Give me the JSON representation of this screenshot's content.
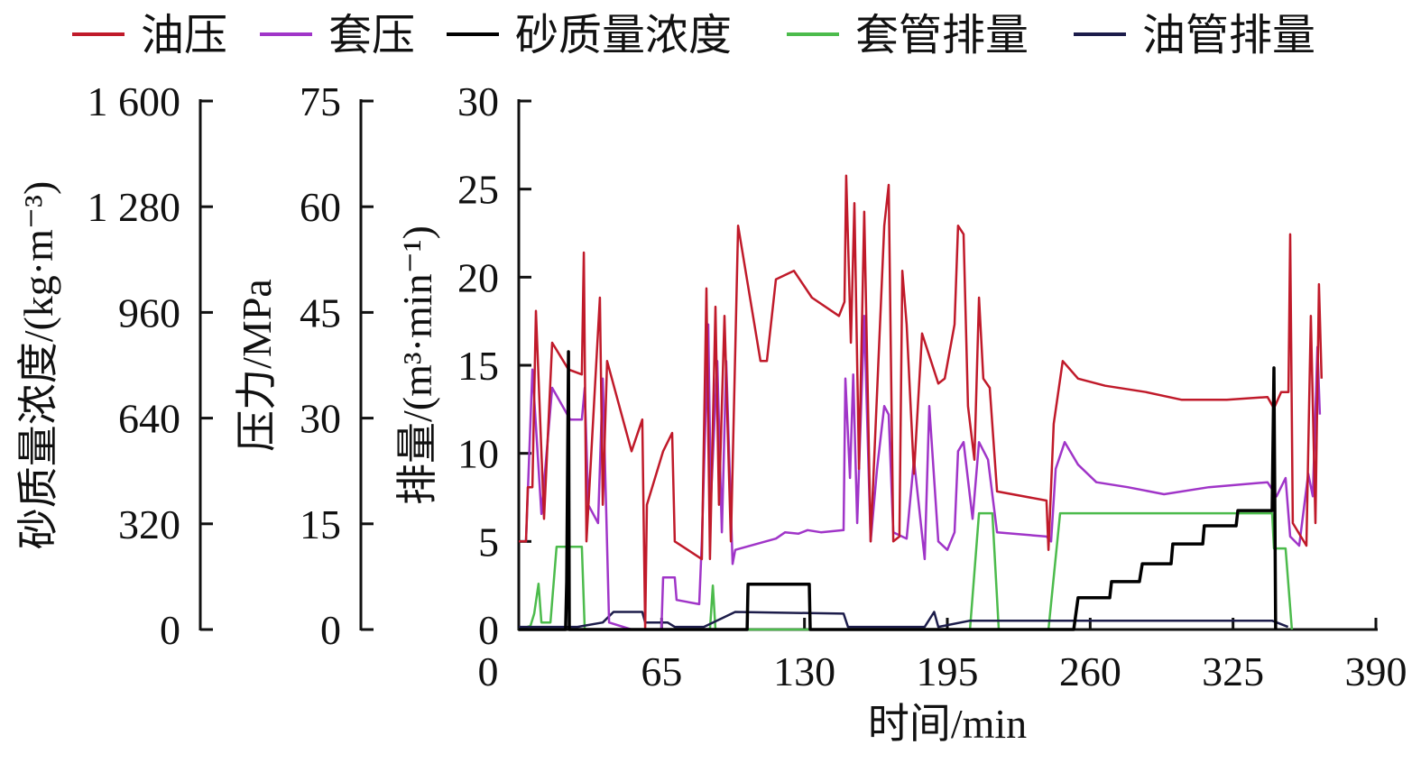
{
  "chart_data": {
    "type": "line",
    "xlabel": "时间/min",
    "xlim": [
      0,
      390
    ],
    "x_ticks": [
      "0",
      "65",
      "130",
      "195",
      "260",
      "325",
      "390"
    ],
    "y_axes": [
      {
        "id": "sand",
        "label": "砂质量浓度/(kg·m⁻³)",
        "range": [
          0,
          1600
        ],
        "ticks": [
          "0",
          "320",
          "640",
          "960",
          "1 280",
          "1 600"
        ]
      },
      {
        "id": "pressure",
        "label": "压力/MPa",
        "range": [
          0,
          75
        ],
        "ticks": [
          "0",
          "15",
          "30",
          "45",
          "60",
          "75"
        ]
      },
      {
        "id": "rate",
        "label": "排量/(m³·min⁻¹)",
        "range": [
          0,
          30
        ],
        "ticks": [
          "0",
          "5",
          "10",
          "15",
          "20",
          "25",
          "30"
        ]
      }
    ],
    "legend_position": "top",
    "series": [
      {
        "name": "油压",
        "axis": "pressure",
        "color": "#c01a2a",
        "points": [
          [
            0,
            12.5
          ],
          [
            3.3,
            12.5
          ],
          [
            4.1,
            20.2
          ],
          [
            6.2,
            20.2
          ],
          [
            7.8,
            45.2
          ],
          [
            11.5,
            15.7
          ],
          [
            15.2,
            40.7
          ],
          [
            22.6,
            36.9
          ],
          [
            28.7,
            36.2
          ],
          [
            29.6,
            53.5
          ],
          [
            30.8,
            12.5
          ],
          [
            36.9,
            47.1
          ],
          [
            38.2,
            17.7
          ],
          [
            40.2,
            38.1
          ],
          [
            51.3,
            25.3
          ],
          [
            56.2,
            29.8
          ],
          [
            57.5,
            0
          ],
          [
            58.3,
            17.7
          ],
          [
            65.7,
            25.3
          ],
          [
            69.8,
            27.9
          ],
          [
            71.0,
            12.5
          ],
          [
            83.3,
            10.0
          ],
          [
            85.4,
            48.4
          ],
          [
            87.0,
            10.0
          ],
          [
            89.5,
            45.8
          ],
          [
            91.1,
            17.7
          ],
          [
            93.6,
            44.5
          ],
          [
            96.5,
            12.5
          ],
          [
            99.8,
            57.3
          ],
          [
            110.0,
            38.1
          ],
          [
            112.9,
            38.1
          ],
          [
            117.0,
            49.7
          ],
          [
            125.2,
            50.9
          ],
          [
            133.4,
            47.1
          ],
          [
            145.7,
            44.5
          ],
          [
            148.2,
            46.5
          ],
          [
            149.0,
            64.4
          ],
          [
            151.1,
            40.7
          ],
          [
            152.7,
            60.5
          ],
          [
            154.8,
            22.8
          ],
          [
            157.2,
            59.3
          ],
          [
            160.1,
            12.5
          ],
          [
            166.3,
            57.3
          ],
          [
            168.3,
            63.1
          ],
          [
            170.4,
            12.5
          ],
          [
            173.2,
            13.2
          ],
          [
            174.5,
            50.9
          ],
          [
            176.5,
            43.3
          ],
          [
            179.8,
            22.1
          ],
          [
            183.5,
            42.0
          ],
          [
            190.9,
            34.9
          ],
          [
            193.8,
            35.6
          ],
          [
            198.3,
            43.3
          ],
          [
            199.9,
            57.3
          ],
          [
            202.4,
            56.1
          ],
          [
            204.4,
            31.7
          ],
          [
            207.3,
            24.1
          ],
          [
            209.4,
            47.1
          ],
          [
            211.4,
            35.6
          ],
          [
            214.3,
            34.3
          ],
          [
            217.6,
            19.6
          ],
          [
            240.1,
            18.3
          ],
          [
            241.0,
            11.3
          ],
          [
            243.4,
            29.2
          ],
          [
            247.5,
            38.1
          ],
          [
            254.5,
            35.6
          ],
          [
            266.8,
            34.6
          ],
          [
            285.3,
            33.7
          ],
          [
            301.7,
            32.6
          ],
          [
            322.2,
            32.6
          ],
          [
            340.7,
            33.0
          ],
          [
            343.6,
            31.4
          ],
          [
            346.9,
            33.7
          ],
          [
            350.2,
            33.7
          ],
          [
            351.0,
            56.1
          ],
          [
            352.2,
            15.1
          ],
          [
            358.4,
            11.9
          ],
          [
            360.4,
            44.5
          ],
          [
            362.5,
            15.1
          ],
          [
            364.1,
            49.0
          ],
          [
            365.3,
            35.6
          ]
        ]
      },
      {
        "name": "套压",
        "axis": "pressure",
        "color": "#a035c8",
        "points": [
          [
            0,
            12.5
          ],
          [
            3.3,
            12.5
          ],
          [
            6.2,
            36.9
          ],
          [
            10.3,
            16.4
          ],
          [
            15.2,
            34.3
          ],
          [
            23.4,
            29.8
          ],
          [
            28.7,
            29.8
          ],
          [
            30.0,
            34.3
          ],
          [
            31.6,
            17.7
          ],
          [
            36.1,
            15.1
          ],
          [
            38.2,
            35.6
          ],
          [
            41.1,
            1.0
          ],
          [
            51.3,
            0
          ],
          [
            64.9,
            0
          ],
          [
            65.7,
            7.4
          ],
          [
            71.0,
            7.4
          ],
          [
            71.8,
            4.2
          ],
          [
            82.1,
            3.6
          ],
          [
            83.3,
            12.5
          ],
          [
            86.2,
            43.3
          ],
          [
            87.4,
            18.3
          ],
          [
            90.3,
            38.1
          ],
          [
            92.4,
            13.8
          ],
          [
            94.4,
            38.1
          ],
          [
            97.3,
            9.3
          ],
          [
            98.5,
            11.3
          ],
          [
            117.0,
            12.9
          ],
          [
            121.2,
            13.8
          ],
          [
            127.3,
            13.6
          ],
          [
            131.4,
            14.1
          ],
          [
            137.5,
            13.8
          ],
          [
            147.8,
            14.1
          ],
          [
            148.6,
            35.6
          ],
          [
            150.7,
            21.5
          ],
          [
            152.2,
            36.2
          ],
          [
            154.0,
            15.1
          ],
          [
            157.2,
            44.5
          ],
          [
            160.1,
            12.5
          ],
          [
            163.0,
            22.8
          ],
          [
            166.3,
            31.7
          ],
          [
            168.3,
            30.5
          ],
          [
            170.4,
            13.8
          ],
          [
            176.5,
            12.9
          ],
          [
            179.8,
            24.1
          ],
          [
            184.7,
            10.0
          ],
          [
            186.8,
            31.7
          ],
          [
            190.9,
            12.5
          ],
          [
            195.0,
            11.3
          ],
          [
            198.3,
            13.8
          ],
          [
            199.9,
            25.3
          ],
          [
            202.4,
            26.6
          ],
          [
            206.5,
            15.7
          ],
          [
            209.4,
            26.6
          ],
          [
            213.5,
            24.1
          ],
          [
            217.6,
            13.8
          ],
          [
            240.1,
            13.2
          ],
          [
            242.2,
            12.5
          ],
          [
            244.3,
            22.8
          ],
          [
            248.4,
            26.6
          ],
          [
            254.5,
            23.4
          ],
          [
            262.8,
            20.9
          ],
          [
            277.1,
            20.2
          ],
          [
            293.6,
            19.2
          ],
          [
            314.0,
            20.2
          ],
          [
            340.7,
            20.9
          ],
          [
            344.8,
            18.9
          ],
          [
            348.9,
            21.5
          ],
          [
            351.0,
            13.2
          ],
          [
            355.1,
            11.9
          ],
          [
            359.2,
            22.1
          ],
          [
            361.3,
            18.9
          ],
          [
            363.4,
            40.1
          ],
          [
            364.5,
            30.5
          ]
        ]
      },
      {
        "name": "砂质量浓度",
        "axis": "sand",
        "color": "#000000",
        "points": [
          [
            0,
            0
          ],
          [
            21.3,
            0
          ],
          [
            21.8,
            145
          ],
          [
            22.6,
            841
          ],
          [
            23.0,
            0
          ],
          [
            103.9,
            0
          ],
          [
            104.3,
            137
          ],
          [
            132.2,
            137
          ],
          [
            132.6,
            0
          ],
          [
            252.5,
            0
          ],
          [
            254.5,
            96
          ],
          [
            268.9,
            96
          ],
          [
            269.7,
            145
          ],
          [
            282.4,
            145
          ],
          [
            283.7,
            199
          ],
          [
            296.8,
            199
          ],
          [
            297.6,
            259
          ],
          [
            311.2,
            259
          ],
          [
            311.9,
            314
          ],
          [
            326.4,
            314
          ],
          [
            327.2,
            360
          ],
          [
            342.8,
            360
          ],
          [
            343.6,
            792
          ],
          [
            344.4,
            0
          ]
        ]
      },
      {
        "name": "套管排量",
        "axis": "rate",
        "color": "#4cbb4c",
        "points": [
          [
            0,
            0
          ],
          [
            5.3,
            0.2
          ],
          [
            7.0,
            0.9
          ],
          [
            9.0,
            2.6
          ],
          [
            10.3,
            0.4
          ],
          [
            14.4,
            0.4
          ],
          [
            17.2,
            4.7
          ],
          [
            28.7,
            4.7
          ],
          [
            30.0,
            0
          ],
          [
            87.0,
            0
          ],
          [
            88.3,
            2.5
          ],
          [
            89.5,
            0
          ],
          [
            205.3,
            0
          ],
          [
            209.4,
            6.6
          ],
          [
            215.5,
            6.6
          ],
          [
            218.4,
            0
          ],
          [
            241.0,
            0
          ],
          [
            246.3,
            6.6
          ],
          [
            342.8,
            6.6
          ],
          [
            343.6,
            4.6
          ],
          [
            348.9,
            4.6
          ],
          [
            351.8,
            0
          ]
        ]
      },
      {
        "name": "油管排量",
        "axis": "rate",
        "color": "#1c1c4a",
        "points": [
          [
            0,
            0.15
          ],
          [
            26.7,
            0.15
          ],
          [
            38.2,
            0.4
          ],
          [
            43.1,
            1.0
          ],
          [
            56.2,
            1.0
          ],
          [
            57.5,
            0.4
          ],
          [
            67.7,
            0.4
          ],
          [
            71.0,
            0.15
          ],
          [
            84.2,
            0.15
          ],
          [
            98.5,
            1.0
          ],
          [
            147.8,
            0.9
          ],
          [
            149.8,
            0.15
          ],
          [
            184.7,
            0.15
          ],
          [
            189.0,
            1.0
          ],
          [
            190.9,
            0.15
          ],
          [
            205.3,
            0.5
          ],
          [
            342.8,
            0.5
          ],
          [
            350.0,
            0.15
          ]
        ]
      }
    ]
  }
}
